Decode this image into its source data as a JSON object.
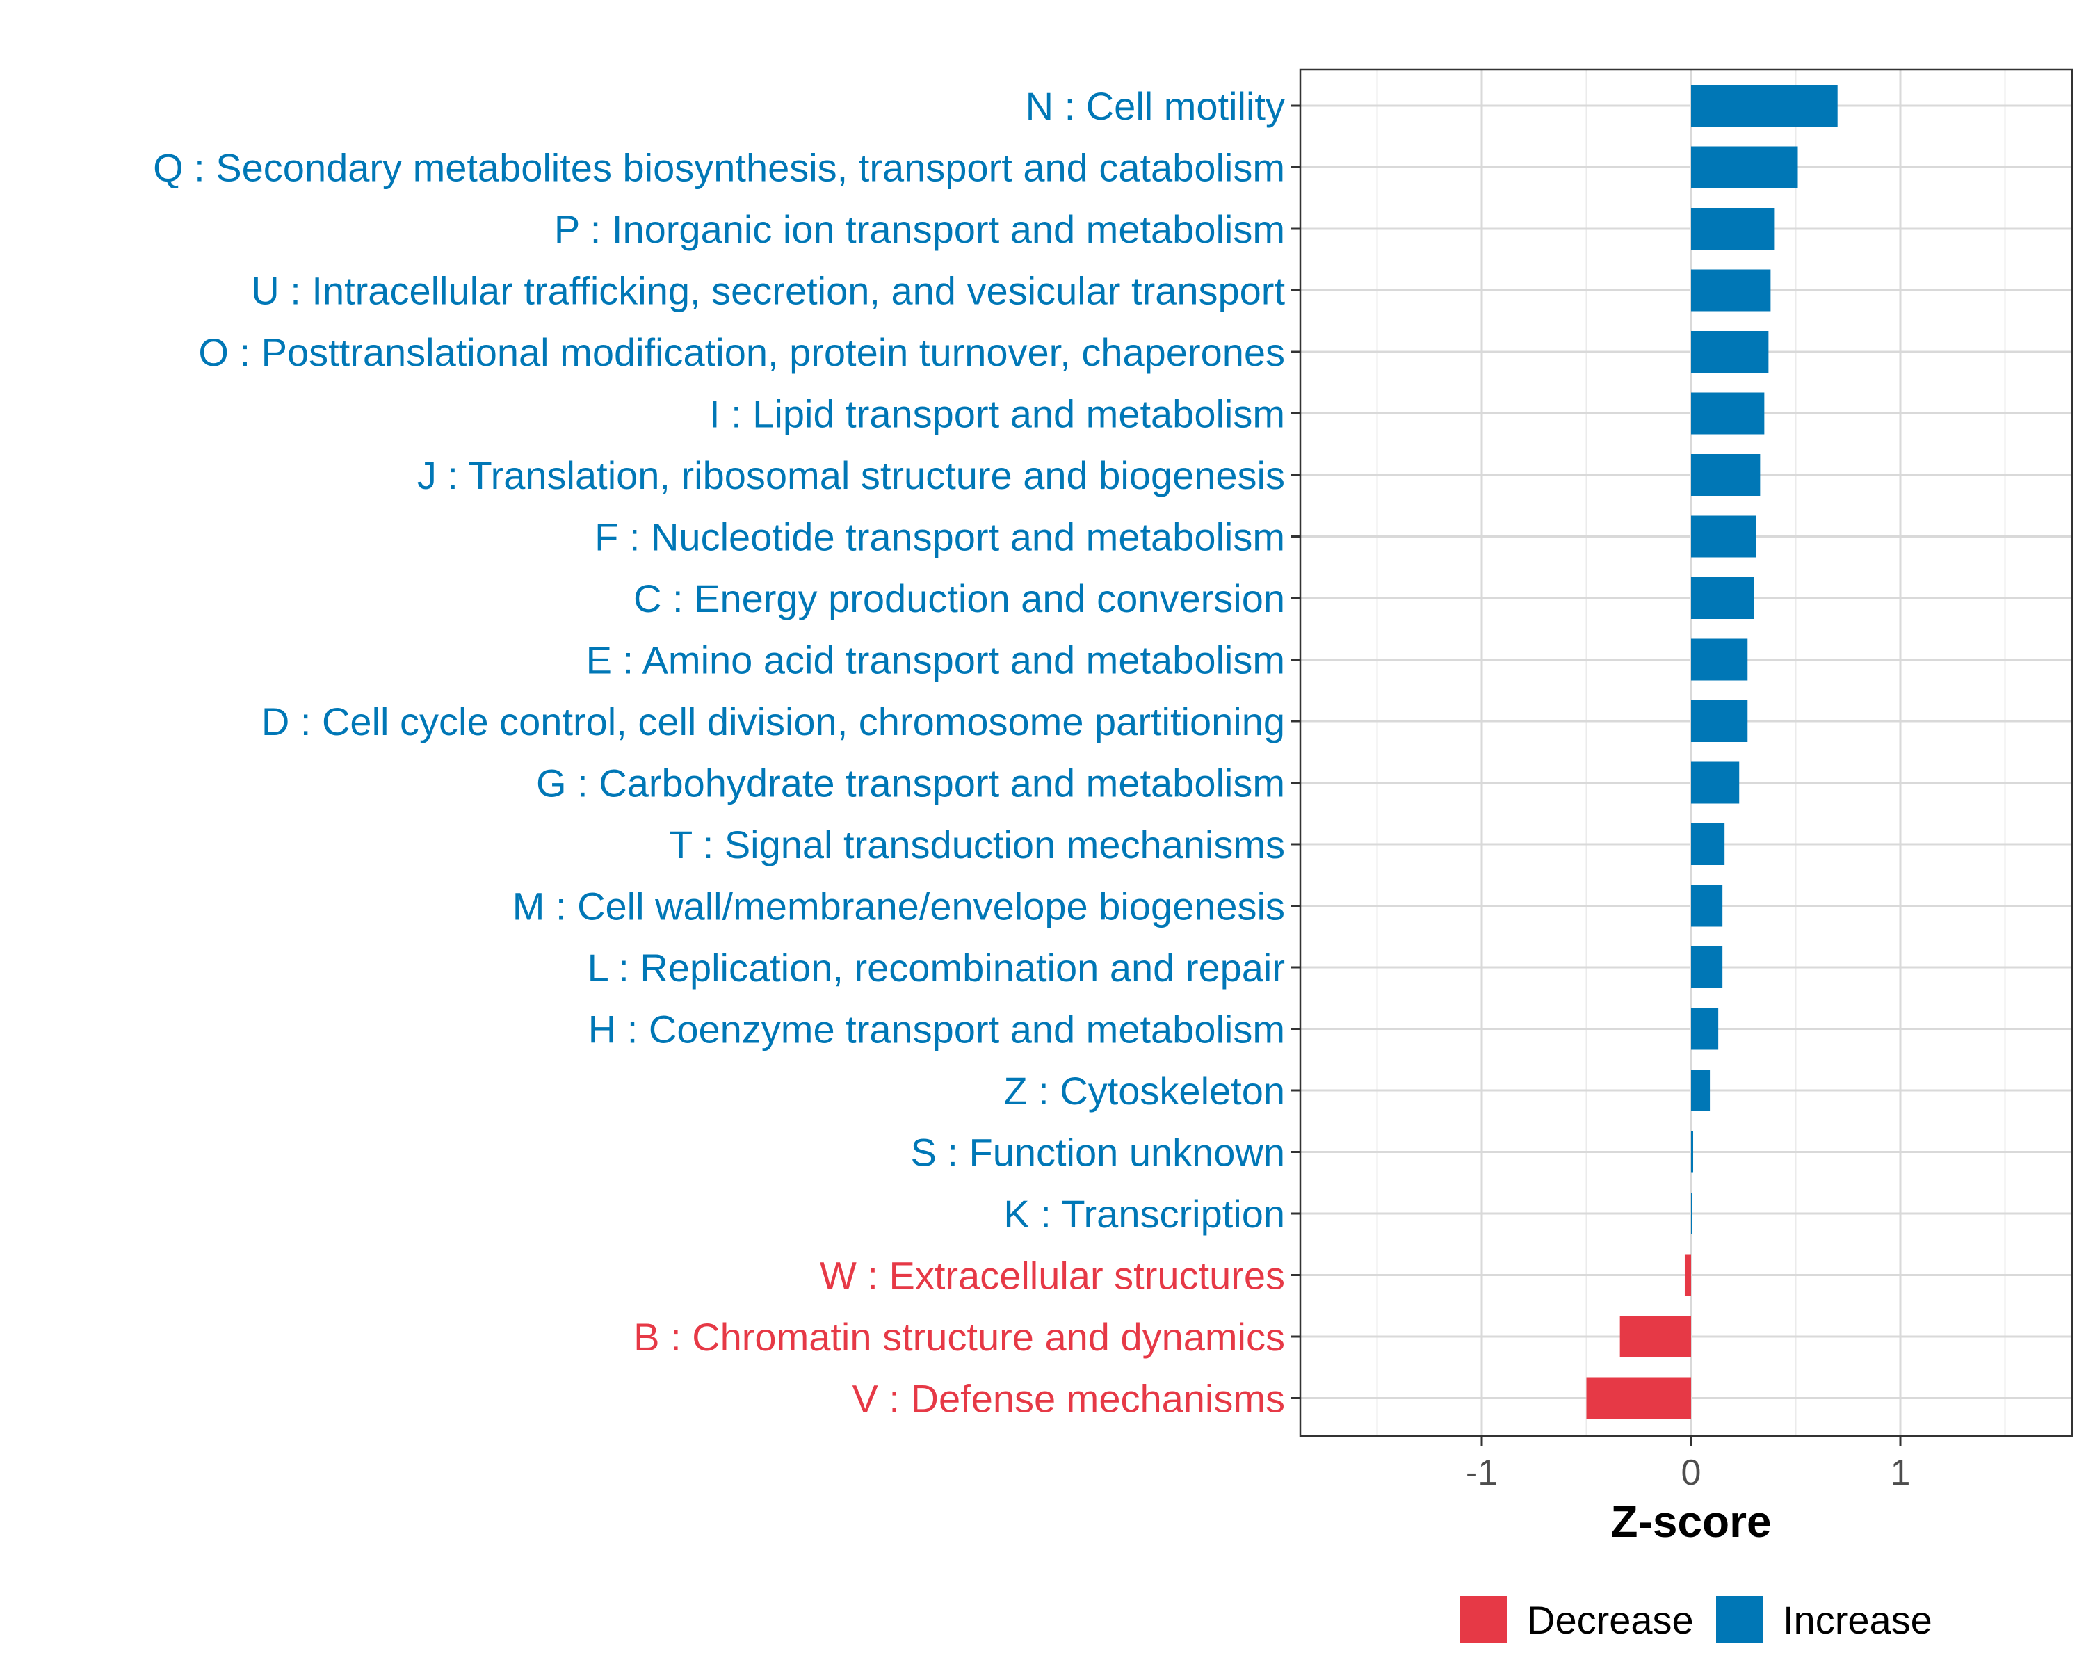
{
  "chart_data": {
    "type": "bar",
    "orientation": "horizontal",
    "xlabel": "Z-score",
    "xlim": [
      -1.87,
      1.87
    ],
    "xticks": [
      -1,
      0,
      1
    ],
    "xtick_labels": [
      "-1",
      "0",
      "1"
    ],
    "grid": true,
    "legend_position": "bottom",
    "colors": {
      "Decrease": "#E63946",
      "Increase": "#0077B6"
    },
    "legend": [
      {
        "label": "Decrease",
        "color": "#E63946"
      },
      {
        "label": "Increase",
        "color": "#0077B6"
      }
    ],
    "categories": [
      "N : Cell motility",
      "Q : Secondary metabolites biosynthesis, transport and catabolism",
      "P : Inorganic ion transport and metabolism",
      "U : Intracellular trafficking, secretion, and vesicular transport",
      "O : Posttranslational modification, protein turnover, chaperones",
      "I : Lipid transport and metabolism",
      "J : Translation, ribosomal structure and biogenesis",
      "F : Nucleotide transport and metabolism",
      "C : Energy production and conversion",
      "E : Amino acid transport and metabolism",
      "D : Cell cycle control, cell division, chromosome partitioning",
      "G : Carbohydrate transport and metabolism",
      "T : Signal transduction mechanisms",
      "M : Cell wall/membrane/envelope biogenesis",
      "L : Replication, recombination and repair",
      "H : Coenzyme transport and metabolism",
      "Z : Cytoskeleton",
      "S : Function unknown",
      "K : Transcription",
      "W : Extracellular structures",
      "B : Chromatin structure and dynamics",
      "V : Defense mechanisms"
    ],
    "values": [
      0.7,
      0.51,
      0.4,
      0.38,
      0.37,
      0.35,
      0.33,
      0.31,
      0.3,
      0.27,
      0.27,
      0.23,
      0.16,
      0.15,
      0.15,
      0.13,
      0.09,
      0.01,
      0.005,
      -0.03,
      -0.34,
      -0.5
    ],
    "groups": [
      "Increase",
      "Increase",
      "Increase",
      "Increase",
      "Increase",
      "Increase",
      "Increase",
      "Increase",
      "Increase",
      "Increase",
      "Increase",
      "Increase",
      "Increase",
      "Increase",
      "Increase",
      "Increase",
      "Increase",
      "Increase",
      "Increase",
      "Decrease",
      "Decrease",
      "Decrease"
    ]
  }
}
